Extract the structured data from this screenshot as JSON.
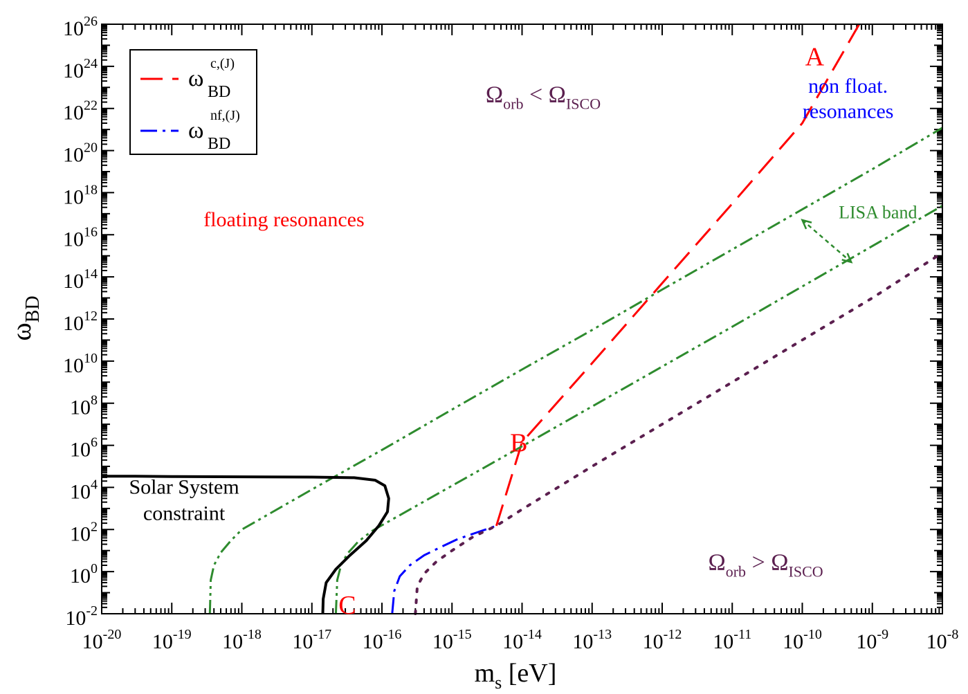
{
  "chart_data": {
    "type": "line",
    "xscale": "log",
    "yscale": "log",
    "xlim": [
      1e-20,
      1e-08
    ],
    "ylim": [
      0.01,
      1e+26
    ],
    "xlabel": {
      "main": "m",
      "sub": "s",
      "rest": " [eV]"
    },
    "ylabel": {
      "main": "ω",
      "sub": "BD"
    },
    "x_ticks": [
      {
        "base": "10",
        "exp": "-20",
        "value": 1e-20
      },
      {
        "base": "10",
        "exp": "-19",
        "value": 1e-19
      },
      {
        "base": "10",
        "exp": "-18",
        "value": 1e-18
      },
      {
        "base": "10",
        "exp": "-17",
        "value": 1e-17
      },
      {
        "base": "10",
        "exp": "-16",
        "value": 1e-16
      },
      {
        "base": "10",
        "exp": "-15",
        "value": 1e-15
      },
      {
        "base": "10",
        "exp": "-14",
        "value": 1e-14
      },
      {
        "base": "10",
        "exp": "-13",
        "value": 1e-13
      },
      {
        "base": "10",
        "exp": "-12",
        "value": 1e-12
      },
      {
        "base": "10",
        "exp": "-11",
        "value": 1e-11
      },
      {
        "base": "10",
        "exp": "-10",
        "value": 1e-10
      },
      {
        "base": "10",
        "exp": "-9",
        "value": 1e-09
      },
      {
        "base": "10",
        "exp": "-8",
        "value": 1e-08
      }
    ],
    "y_ticks": [
      {
        "base": "10",
        "exp": "-2",
        "value": 0.01
      },
      {
        "base": "10",
        "exp": "0",
        "value": 1.0
      },
      {
        "base": "10",
        "exp": "2",
        "value": 100.0
      },
      {
        "base": "10",
        "exp": "4",
        "value": 10000.0
      },
      {
        "base": "10",
        "exp": "6",
        "value": 1000000.0
      },
      {
        "base": "10",
        "exp": "8",
        "value": 100000000.0
      },
      {
        "base": "10",
        "exp": "10",
        "value": 10000000000.0
      },
      {
        "base": "10",
        "exp": "12",
        "value": 1000000000000.0
      },
      {
        "base": "10",
        "exp": "14",
        "value": 100000000000000.0
      },
      {
        "base": "10",
        "exp": "16",
        "value": 1e+16
      },
      {
        "base": "10",
        "exp": "18",
        "value": 1e+18
      },
      {
        "base": "10",
        "exp": "20",
        "value": 1e+20
      },
      {
        "base": "10",
        "exp": "22",
        "value": 1e+22
      },
      {
        "base": "10",
        "exp": "24",
        "value": 1e+24
      },
      {
        "base": "10",
        "exp": "26",
        "value": 1e+26
      }
    ],
    "legend": {
      "position": "top-left",
      "entries": [
        {
          "main": "ω",
          "sub": "BD",
          "sup": "c,(J)",
          "color": "#ff0000",
          "dash": "dashed"
        },
        {
          "main": "ω",
          "sub": "BD",
          "sup": "nf,(J)",
          "color": "#0000ff",
          "dash": "dash-dot"
        }
      ]
    },
    "series": [
      {
        "color": "#ff0000",
        "dash": "dashed",
        "x": [
          4.3e-15,
          1e-14,
          1e-13,
          1e-12,
          1e-11,
          1e-10,
          6.5e-10
        ],
        "y": [
          150,
          1400000.0,
          8000000000.0,
          50000000000000.0,
          3e+17,
          2e+21,
          1e+26
        ]
      },
      {
        "color": "#0000ff",
        "dash": "dash-dot",
        "x": [
          1.4e-16,
          1.5e-16,
          1.8e-16,
          2.5e-16,
          4e-16,
          7e-16,
          1.2e-15,
          2.2e-15,
          4.3e-15
        ],
        "y": [
          0.01,
          0.12,
          0.6,
          2,
          6,
          15,
          35,
          70,
          150
        ]
      },
      {
        "color": "#5b1f4f",
        "dash": "dotted",
        "x": [
          3e-16,
          3.2e-16,
          4e-16,
          6e-16,
          1e-15,
          2e-15,
          4.3e-15,
          1e-14,
          1e-13,
          1e-12,
          1e-11,
          1e-10,
          1e-09,
          1e-08
        ],
        "y": [
          0.01,
          0.2,
          0.8,
          3,
          10,
          45,
          150,
          900,
          100000.0,
          10000000.0,
          1000000000.0,
          100000000000.0,
          10000000000000.0,
          1400000000000000.0
        ]
      },
      {
        "color": "#2e8b2e",
        "dash": "dash-dot-dot",
        "x": [
          3.5e-19,
          3.6e-19,
          4e-19,
          5e-19,
          7e-19,
          1e-18,
          1e-17,
          1e-16,
          1e-15,
          1e-14,
          1e-13,
          1e-12,
          1e-11,
          1e-10,
          1e-09,
          1e-08
        ],
        "y": [
          0.01,
          0.4,
          2,
          8,
          30,
          100,
          8000.0,
          600000.0,
          50000000.0,
          4000000000.0,
          300000000000.0,
          25000000000000.0,
          2000000000000000.0,
          1.6e+17,
          1.3e+19,
          1.2e+21
        ]
      },
      {
        "color": "#2e8b2e",
        "dash": "dash-dot-dot",
        "x": [
          2.2e-17,
          2.3e-17,
          2.6e-17,
          3.2e-17,
          4.5e-17,
          7e-17,
          1e-16,
          1e-15,
          1e-14,
          1e-13,
          1e-12,
          1e-11,
          1e-10,
          1e-09,
          1e-08
        ],
        "y": [
          0.01,
          0.4,
          2,
          7,
          25,
          80,
          160,
          12000.0,
          900000.0,
          70000000.0,
          5500000000.0,
          430000000000.0,
          35000000000000.0,
          2900000000000000.0,
          2.4e+17
        ]
      },
      {
        "color": "#000000",
        "dash": "solid",
        "x": [
          1e-20,
          3e-20,
          1e-19,
          1e-18,
          1e-17,
          4e-17,
          8e-17,
          1.1e-16,
          1.25e-16,
          1.2e-16,
          9e-17,
          6e-17,
          3.5e-17,
          2.2e-17,
          1.6e-17,
          1.45e-17,
          1.43e-17
        ],
        "y": [
          34000.0,
          34000.0,
          33000.0,
          32000.0,
          31000.0,
          29000.0,
          22000.0,
          12000.0,
          3000.0,
          700,
          150,
          30,
          6,
          1.3,
          0.3,
          0.05,
          0.01
        ]
      }
    ],
    "arrow": {
      "label": "LISA band",
      "color": "#2e8b2e",
      "from": [
        1e-10,
        5e+16
      ],
      "to": [
        5e-10,
        500000000000000.0
      ]
    },
    "annotations": [
      {
        "id": "label-A",
        "text": "A",
        "x": 1.5e-10,
        "y": 1.1e+24,
        "color": "#ff0000",
        "size": 38
      },
      {
        "id": "label-B",
        "text": "B",
        "x": 9e-15,
        "y": 500000.0,
        "color": "#ff0000",
        "size": 38
      },
      {
        "id": "label-C",
        "text": "C",
        "x": 3.2e-17,
        "y": 0.01,
        "color": "#ff0000",
        "size": 38
      },
      {
        "id": "label-floating",
        "text": "floating  resonances",
        "x": 4e-18,
        "y": 2.5e+16,
        "color": "#ff0000",
        "size": 30
      },
      {
        "id": "label-nonfloat-1",
        "text": "non float.",
        "x": 4.5e-10,
        "y": 5.5e+22,
        "color": "#0000ff",
        "size": 30
      },
      {
        "id": "label-nonfloat-2",
        "text": "resonances",
        "x": 4.5e-10,
        "y": 3.5e+21,
        "color": "#0000ff",
        "size": 30
      },
      {
        "id": "label-lisa",
        "text": "LISA band",
        "x": 1.2e-09,
        "y": 6e+16,
        "color": "#2e8b2e",
        "size": 26
      },
      {
        "id": "label-solar-1",
        "text": "Solar System",
        "x": 1.5e-19,
        "y": 5000.0,
        "color": "#000000",
        "size": 30
      },
      {
        "id": "label-solar-2",
        "text": "constraint",
        "x": 1.5e-19,
        "y": 280.0,
        "color": "#000000",
        "size": 30
      }
    ],
    "math_annotations": [
      {
        "id": "label-orb-lt-isco",
        "main1": "Ω",
        "sub1": "orb",
        "op": " < ",
        "main2": "Ω",
        "sub2": "ISCO",
        "x": 2e-14,
        "y": 2e+22,
        "color": "#5b1f4f"
      },
      {
        "id": "label-orb-gt-isco",
        "main1": "Ω",
        "sub1": "orb",
        "op": " > ",
        "main2": "Ω",
        "sub2": "ISCO",
        "x": 3e-11,
        "y": 1.2,
        "color": "#5b1f4f"
      }
    ]
  }
}
